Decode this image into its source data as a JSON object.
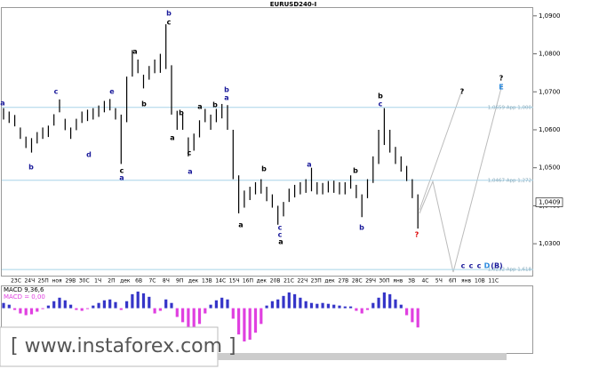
{
  "chart_data": {
    "type": "candlestick",
    "title": "EURUSD240-I",
    "x_tick_labels": [
      "23C",
      "24Ч",
      "25П",
      "ноя",
      "29В",
      "30С",
      "1Ч",
      "2П",
      "дек",
      "6В",
      "7С",
      "8Ч",
      "9П",
      "дек",
      "13В",
      "14С",
      "15Ч",
      "16П",
      "дек",
      "20В",
      "21С",
      "22Ч",
      "23П",
      "дек",
      "27В",
      "28С",
      "29Ч",
      "30П",
      "янв",
      "3В",
      "4С",
      "5Ч",
      "6П",
      "янв",
      "10В",
      "11С"
    ],
    "high": [
      1.0657,
      1.0648,
      1.0639,
      1.0606,
      1.0582,
      1.0578,
      1.0594,
      1.0606,
      1.0611,
      1.0641,
      1.068,
      1.0629,
      1.0606,
      1.0629,
      1.0648,
      1.0653,
      1.0657,
      1.0664,
      1.0676,
      1.0681,
      1.0657,
      1.064,
      1.074,
      1.081,
      1.0785,
      1.0745,
      1.0768,
      1.0785,
      1.08,
      1.0878,
      1.077,
      1.065,
      1.064,
      1.058,
      1.059,
      1.0625,
      1.0655,
      1.064,
      1.0655,
      1.0668,
      1.0665,
      1.06,
      1.048,
      1.044,
      1.045,
      1.0462,
      1.047,
      1.045,
      1.043,
      1.04,
      1.041,
      1.0445,
      1.0455,
      1.0462,
      1.047,
      1.05,
      1.0462,
      1.046,
      1.0465,
      1.0466,
      1.0462,
      1.0462,
      1.048,
      1.0455,
      1.043,
      1.047,
      1.053,
      1.06,
      1.0657,
      1.06,
      1.0555,
      1.053,
      1.0505,
      1.047,
      1.043
    ],
    "low": [
      1.0627,
      1.0618,
      1.0609,
      1.0576,
      1.0552,
      1.054,
      1.0564,
      1.0576,
      1.0581,
      1.0611,
      1.0646,
      1.0599,
      1.0576,
      1.0599,
      1.0618,
      1.0623,
      1.0627,
      1.0634,
      1.0646,
      1.0651,
      1.0627,
      1.051,
      1.062,
      1.074,
      1.0749,
      1.0709,
      1.0732,
      1.0749,
      1.075,
      1.076,
      1.064,
      1.06,
      1.06,
      1.053,
      1.0545,
      1.058,
      1.062,
      1.06,
      1.062,
      1.063,
      1.06,
      1.047,
      1.038,
      1.0395,
      1.0415,
      1.043,
      1.0432,
      1.0412,
      1.0395,
      1.035,
      1.0372,
      1.041,
      1.0422,
      1.043,
      1.0434,
      1.0438,
      1.043,
      1.043,
      1.0435,
      1.0434,
      1.043,
      1.043,
      1.0445,
      1.042,
      1.037,
      1.042,
      1.046,
      1.051,
      1.056,
      1.054,
      1.051,
      1.049,
      1.0465,
      1.042,
      1.034
    ],
    "color": "#000000",
    "last_price": {
      "value": 1.0409,
      "label": "1,0409"
    },
    "ylim": [
      1.0216,
      1.0923
    ],
    "yticks": [
      {
        "value": 1.09,
        "label": "1,0900"
      },
      {
        "value": 1.08,
        "label": "1,0800"
      },
      {
        "value": 1.07,
        "label": "1,0700"
      },
      {
        "value": 1.06,
        "label": "1,0600"
      },
      {
        "value": 1.05,
        "label": "1,0500"
      },
      {
        "value": 1.04,
        "label": "1,0400"
      },
      {
        "value": 1.03,
        "label": "1,0300"
      }
    ],
    "levels": [
      {
        "value": 1.0659,
        "label": "1,0659 Арр 1,000"
      },
      {
        "value": 1.0467,
        "label": "1,0467 Арр 1,272"
      },
      {
        "value": 1.0232,
        "label": "1,0232 Арр 1,618"
      }
    ],
    "level_color": "#a8d4e8",
    "wave_labels": [
      {
        "text": "b",
        "color": "#1a1a9a"
      },
      {
        "text": "c",
        "color": "#000000"
      },
      {
        "text": "a",
        "color": "#000000"
      },
      {
        "text": "b",
        "color": "#000000"
      },
      {
        "text": "c",
        "color": "#000000"
      },
      {
        "text": "a",
        "color": "#1a1a9a"
      },
      {
        "text": "b",
        "color": "#1a1a9a"
      },
      {
        "text": "c",
        "color": "#1a1a9a"
      },
      {
        "text": "d",
        "color": "#1a1a9a"
      },
      {
        "text": "e",
        "color": "#1a1a9a"
      },
      {
        "text": "a",
        "color": "#1a1a9a"
      },
      {
        "text": "a",
        "color": "#000000"
      },
      {
        "text": "b",
        "color": "#000000"
      },
      {
        "text": "c",
        "color": "#000000"
      },
      {
        "text": "a",
        "color": "#1a1a9a"
      },
      {
        "text": "a",
        "color": "#000000"
      },
      {
        "text": "b",
        "color": "#000000"
      },
      {
        "text": "b",
        "color": "#1a1a9a"
      },
      {
        "text": "a",
        "color": "#1a1a9a"
      },
      {
        "text": "b",
        "color": "#000000"
      },
      {
        "text": "a",
        "color": "#1a1a9a"
      },
      {
        "text": "a",
        "color": "#000000"
      },
      {
        "text": "c",
        "color": "#1a1a9a"
      },
      {
        "text": "c",
        "color": "#1a1a9a"
      },
      {
        "text": "a",
        "color": "#000000"
      },
      {
        "text": "b",
        "color": "#000000"
      },
      {
        "text": "b",
        "color": "#1a1a9a"
      },
      {
        "text": "b",
        "color": "#000000"
      },
      {
        "text": "c",
        "color": "#1a1a9a"
      },
      {
        "text": "?",
        "color": "#dd0000"
      },
      {
        "text": "?",
        "color": "#000000"
      },
      {
        "text": "?",
        "color": "#000000"
      },
      {
        "text": "E",
        "color": "#2a8adf"
      },
      {
        "text": "c",
        "color": "#1a1a9a"
      },
      {
        "text": "c",
        "color": "#1a1a9a"
      },
      {
        "text": "c",
        "color": "#1a1a9a"
      },
      {
        "text": "D",
        "color": "#2a8adf"
      },
      {
        "text": "(B)",
        "color": "#1a1a9a"
      }
    ],
    "macd": {
      "title": "MACD 9,36,6",
      "value_label": "MACD = 0,00",
      "ylim": [
        -0.004,
        0.0025
      ],
      "pos_color": "#3535c8",
      "neg_color": "#e040e0",
      "values": [
        0.0006,
        0.0004,
        -0.0002,
        -0.0006,
        -0.0008,
        -0.0007,
        -0.0004,
        -0.0001,
        0.0003,
        0.0008,
        0.0012,
        0.0009,
        0.0004,
        -0.0002,
        -0.0003,
        -0.0001,
        0.0003,
        0.0006,
        0.0009,
        0.001,
        0.0007,
        -0.0002,
        0.0008,
        0.0016,
        0.0019,
        0.0017,
        0.0013,
        -0.0006,
        -0.0003,
        0.001,
        0.0006,
        -0.001,
        -0.0016,
        -0.0024,
        -0.0026,
        -0.0018,
        -0.0006,
        0.0004,
        0.0009,
        0.0012,
        0.001,
        -0.0012,
        -0.003,
        -0.0038,
        -0.0036,
        -0.0028,
        -0.0018,
        0.0003,
        0.0008,
        0.001,
        0.0014,
        0.0018,
        0.0016,
        0.0012,
        0.0008,
        0.0006,
        0.0005,
        0.0006,
        0.0005,
        0.0004,
        0.0003,
        0.0002,
        0.0002,
        -0.0003,
        -0.0006,
        -0.0002,
        0.0006,
        0.0012,
        0.0018,
        0.0016,
        0.001,
        0.0004,
        -0.0008,
        -0.0016,
        -0.0022
      ]
    },
    "watermark": "[ www.instaforex.com ]"
  }
}
